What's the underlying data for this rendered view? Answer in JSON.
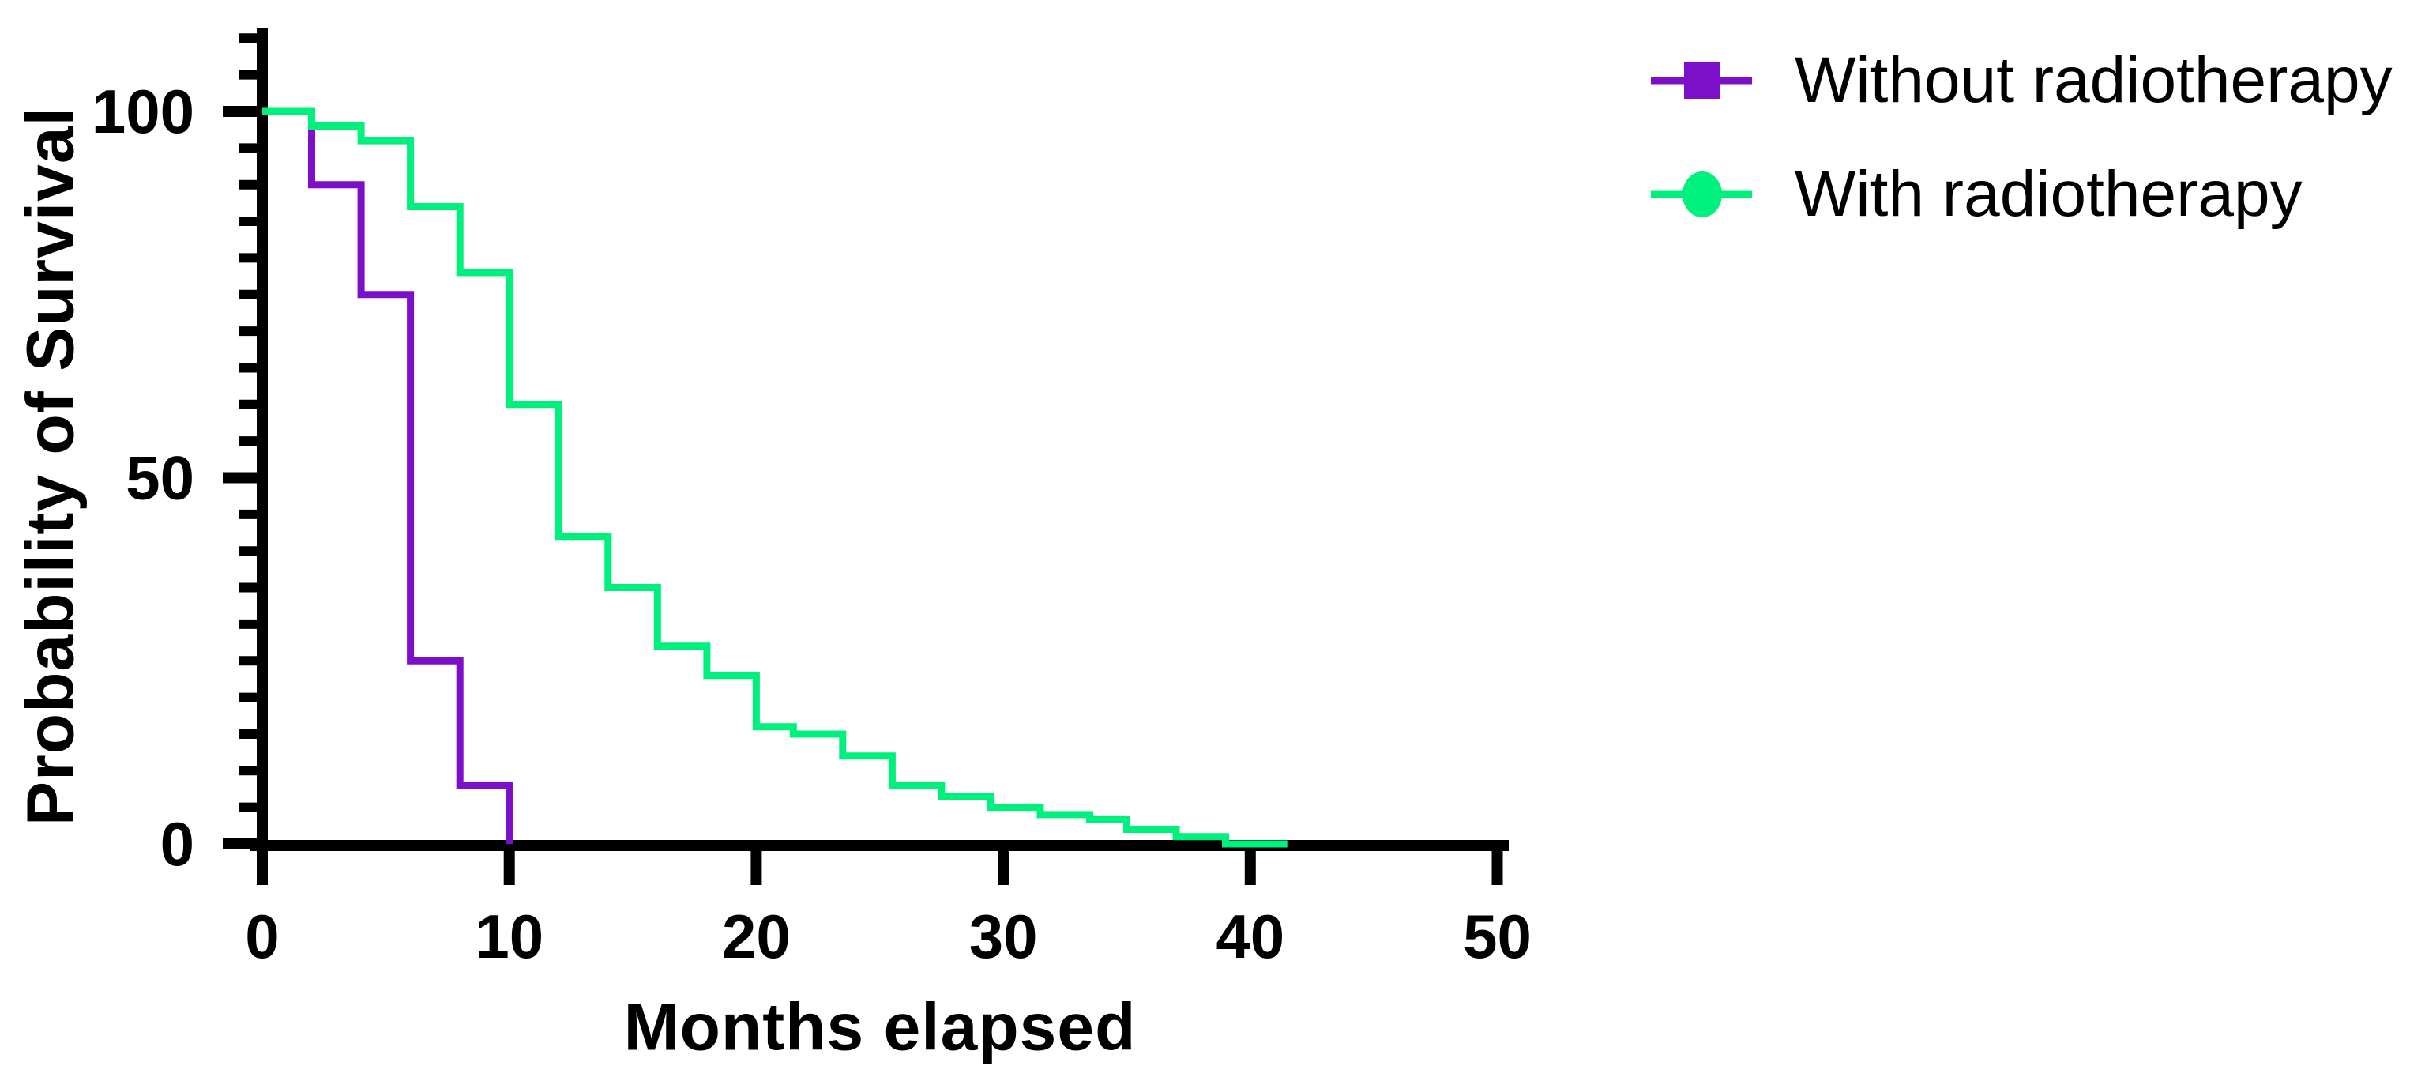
{
  "figure": {
    "background": "#ffffff",
    "text_color": "#000000"
  },
  "chart_data": {
    "type": "line",
    "subtype": "kaplan-meier-step",
    "title": "",
    "xlabel": "Months elapsed",
    "ylabel": "Probability of Survival",
    "xlim": [
      0,
      50
    ],
    "xticks": [
      0,
      10,
      20,
      30,
      40,
      50
    ],
    "ylim": [
      0,
      100
    ],
    "yticks_major": [
      0,
      50,
      100
    ],
    "ytick_minor_step": 5,
    "y_axis_top_value": 110,
    "grid": false,
    "legend_position": "top-right",
    "series": [
      {
        "name": "Without radiotherapy",
        "color": "#7B10C8",
        "marker": "square",
        "points": [
          [
            0,
            100
          ],
          [
            2,
            90
          ],
          [
            4,
            75
          ],
          [
            6,
            25
          ],
          [
            8,
            8
          ],
          [
            10,
            0
          ]
        ],
        "end_x": 10
      },
      {
        "name": "With radiotherapy",
        "color": "#00F07E",
        "marker": "circle",
        "points": [
          [
            0,
            100
          ],
          [
            2,
            98
          ],
          [
            4,
            96
          ],
          [
            6,
            87
          ],
          [
            8,
            78
          ],
          [
            10,
            60
          ],
          [
            12,
            42
          ],
          [
            14,
            35
          ],
          [
            16,
            27
          ],
          [
            18,
            23
          ],
          [
            20,
            16
          ],
          [
            21.5,
            15
          ],
          [
            23.5,
            12
          ],
          [
            25.5,
            8
          ],
          [
            27.5,
            6.5
          ],
          [
            29.5,
            5
          ],
          [
            31.5,
            4
          ],
          [
            33.5,
            3.3
          ],
          [
            35,
            2
          ],
          [
            37,
            1
          ],
          [
            39,
            0
          ]
        ],
        "end_x": 41.5
      }
    ]
  }
}
